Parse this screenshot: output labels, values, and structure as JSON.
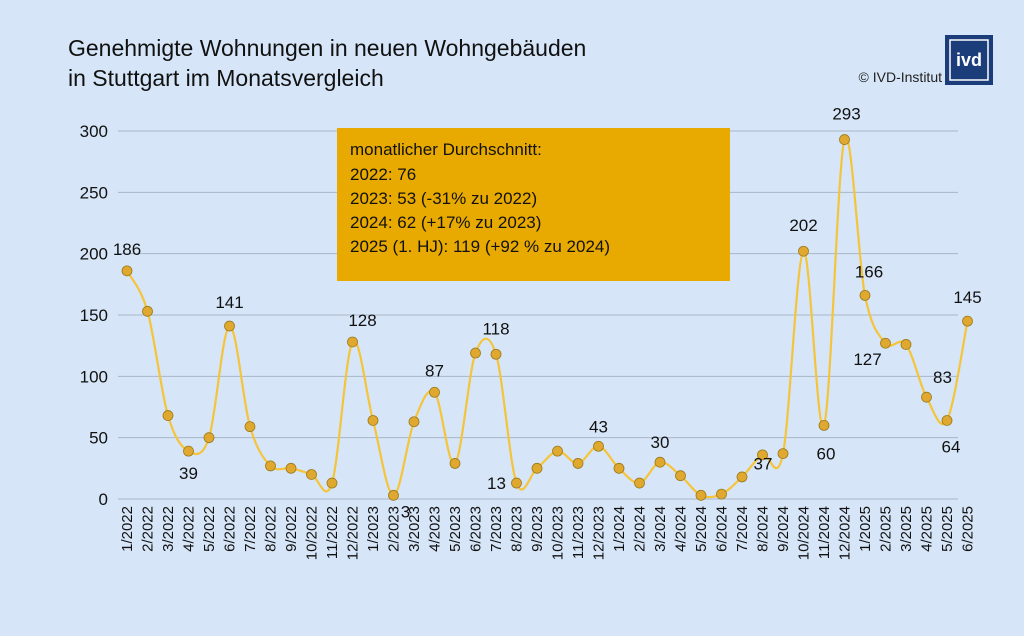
{
  "header": {
    "title_line1": "Genehmigte Wohnungen in neuen Wohngebäuden",
    "title_line2": "in Stuttgart im Monatsvergleich",
    "copyright": "© IVD-Institut",
    "logo_text": "ivd"
  },
  "info_box": {
    "line1": "monatlicher Durchschnitt:",
    "line2": "2022: 76",
    "line3": "2023: 53 (-31% zu 2022)",
    "line4": "2024: 62 (+17% zu 2023)",
    "line5": "2025 (1. HJ): 119 (+92 % zu 2024)"
  },
  "colors": {
    "line": "#f5c43a",
    "marker": "#e0a82e",
    "marker_stroke": "#9a7a1a",
    "info_box": "#e8aa00",
    "grid": "#a9b6c8",
    "background": "#d6e6f8"
  },
  "chart_data": {
    "type": "line",
    "title": "Genehmigte Wohnungen in neuen Wohngebäuden in Stuttgart im Monatsvergleich",
    "xlabel": "",
    "ylabel": "",
    "ylim": [
      0,
      300
    ],
    "yticks": [
      0,
      50,
      100,
      150,
      200,
      250,
      300
    ],
    "grid": true,
    "categories": [
      "1/2022",
      "2/2022",
      "3/2022",
      "4/2022",
      "5/2022",
      "6/2022",
      "7/2022",
      "8/2022",
      "9/2022",
      "10/2022",
      "11/2022",
      "12/2022",
      "1/2023",
      "2/2023",
      "3/2023",
      "4/2023",
      "5/2023",
      "6/2023",
      "7/2023",
      "8/2023",
      "9/2023",
      "10/2023",
      "11/2023",
      "12/2023",
      "1/2024",
      "2/2024",
      "3/2024",
      "4/2024",
      "5/2024",
      "6/2024",
      "7/2024",
      "8/2024",
      "9/2024",
      "10/2024",
      "11/2024",
      "12/2024",
      "1/2025",
      "2/2025",
      "3/2025",
      "4/2025",
      "5/2025",
      "6/2025"
    ],
    "values": [
      186,
      153,
      68,
      39,
      50,
      141,
      59,
      27,
      25,
      20,
      13,
      128,
      64,
      3,
      63,
      87,
      29,
      119,
      118,
      13,
      25,
      39,
      29,
      43,
      25,
      13,
      30,
      19,
      3,
      4,
      18,
      36,
      37,
      202,
      60,
      293,
      166,
      127,
      126,
      83,
      64,
      145
    ],
    "data_labels": [
      {
        "index": 0,
        "text": "186"
      },
      {
        "index": 3,
        "text": "39"
      },
      {
        "index": 5,
        "text": "141"
      },
      {
        "index": 11,
        "text": "128"
      },
      {
        "index": 13,
        "text": "3"
      },
      {
        "index": 15,
        "text": "87"
      },
      {
        "index": 18,
        "text": "118"
      },
      {
        "index": 19,
        "text": "13"
      },
      {
        "index": 23,
        "text": "43"
      },
      {
        "index": 26,
        "text": "30"
      },
      {
        "index": 32,
        "text": "37"
      },
      {
        "index": 33,
        "text": "202"
      },
      {
        "index": 34,
        "text": "60"
      },
      {
        "index": 35,
        "text": "293"
      },
      {
        "index": 36,
        "text": "166"
      },
      {
        "index": 37,
        "text": "127"
      },
      {
        "index": 39,
        "text": "83"
      },
      {
        "index": 40,
        "text": "64"
      },
      {
        "index": 41,
        "text": "145"
      }
    ]
  }
}
